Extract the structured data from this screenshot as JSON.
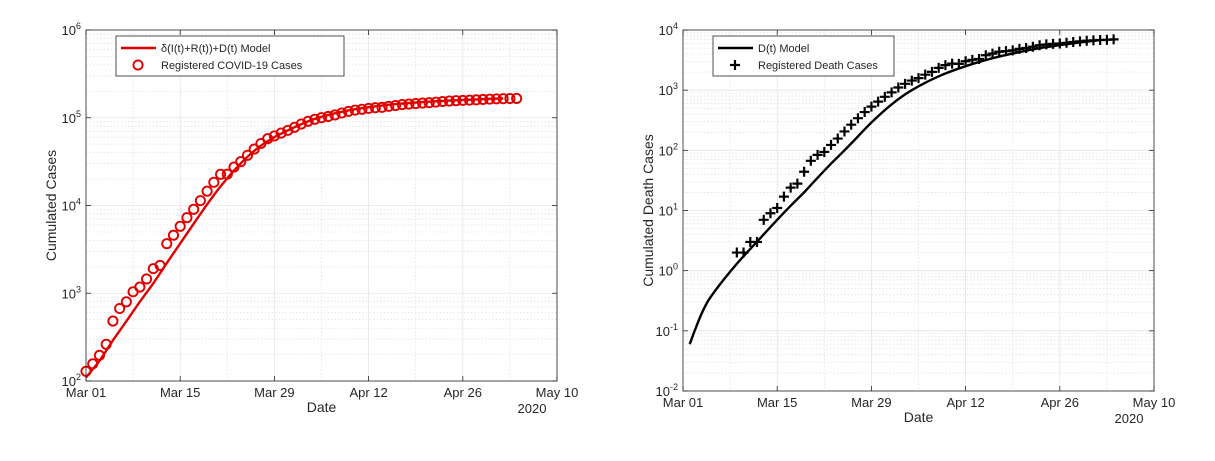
{
  "chart_data": [
    {
      "type": "line",
      "xlabel": "Date",
      "ylabel": "Cumulated Cases",
      "year_label": "2020",
      "x_ticks": [
        "Mar 01",
        "Mar 15",
        "Mar 29",
        "Apr 12",
        "Apr 26",
        "May 10"
      ],
      "xlim": [
        "2020-03-01",
        "2020-05-10"
      ],
      "y_scale": "log",
      "ylim": [
        100,
        1000000
      ],
      "y_ticks": [
        {
          "base": "10",
          "exp": "2"
        },
        {
          "base": "10",
          "exp": "3"
        },
        {
          "base": "10",
          "exp": "4"
        },
        {
          "base": "10",
          "exp": "5"
        },
        {
          "base": "10",
          "exp": "6"
        }
      ],
      "grid": true,
      "legend_position": "top-left",
      "colors": {
        "model": "#e00000",
        "data": "#e00000"
      },
      "series": [
        {
          "name": "δ(I(t)+R(t))+D(t) Model",
          "kind": "line",
          "x": [
            "2020-03-01",
            "2020-03-03",
            "2020-03-05",
            "2020-03-07",
            "2020-03-09",
            "2020-03-11",
            "2020-03-13",
            "2020-03-15",
            "2020-03-17",
            "2020-03-19",
            "2020-03-21",
            "2020-03-23",
            "2020-03-25",
            "2020-03-27",
            "2020-03-29",
            "2020-04-01",
            "2020-04-04",
            "2020-04-08",
            "2020-04-12",
            "2020-04-16",
            "2020-04-20",
            "2020-04-24",
            "2020-04-28",
            "2020-05-02"
          ],
          "y": [
            110,
            170,
            290,
            480,
            800,
            1300,
            2200,
            3700,
            6200,
            10300,
            16500,
            25000,
            36000,
            48000,
            60000,
            78000,
            97000,
            117000,
            132000,
            143000,
            151000,
            157000,
            162000,
            166000
          ]
        },
        {
          "name": "Registered COVID-19 Cases",
          "kind": "marker",
          "marker": "circle",
          "x": [
            "2020-03-01",
            "2020-03-02",
            "2020-03-03",
            "2020-03-04",
            "2020-03-05",
            "2020-03-06",
            "2020-03-07",
            "2020-03-08",
            "2020-03-09",
            "2020-03-10",
            "2020-03-11",
            "2020-03-12",
            "2020-03-13",
            "2020-03-14",
            "2020-03-15",
            "2020-03-16",
            "2020-03-17",
            "2020-03-18",
            "2020-03-19",
            "2020-03-20",
            "2020-03-21",
            "2020-03-22",
            "2020-03-23",
            "2020-03-24",
            "2020-03-25",
            "2020-03-26",
            "2020-03-27",
            "2020-03-28",
            "2020-03-29",
            "2020-03-30",
            "2020-03-31",
            "2020-04-01",
            "2020-04-02",
            "2020-04-03",
            "2020-04-04",
            "2020-04-05",
            "2020-04-06",
            "2020-04-07",
            "2020-04-08",
            "2020-04-09",
            "2020-04-10",
            "2020-04-11",
            "2020-04-12",
            "2020-04-13",
            "2020-04-14",
            "2020-04-15",
            "2020-04-16",
            "2020-04-17",
            "2020-04-18",
            "2020-04-19",
            "2020-04-20",
            "2020-04-21",
            "2020-04-22",
            "2020-04-23",
            "2020-04-24",
            "2020-04-25",
            "2020-04-26",
            "2020-04-27",
            "2020-04-28",
            "2020-04-29",
            "2020-04-30",
            "2020-05-01",
            "2020-05-02",
            "2020-05-03",
            "2020-05-04"
          ],
          "y": [
            129,
            157,
            196,
            262,
            482,
            670,
            799,
            1040,
            1176,
            1457,
            1908,
            2078,
            3675,
            4585,
            5795,
            7272,
            9045,
            11364,
            14550,
            18364,
            22672,
            22780,
            27436,
            31554,
            37323,
            43938,
            50871,
            57695,
            62095,
            66885,
            71808,
            77872,
            84794,
            91159,
            96092,
            100123,
            103374,
            107663,
            113296,
            118181,
            122171,
            124908,
            127854,
            130072,
            131359,
            134753,
            137698,
            141397,
            143342,
            145184,
            147065,
            148291,
            150648,
            153129,
            154999,
            156513,
            157770,
            158758,
            159912,
            161539,
            163009,
            164077,
            164967,
            165664,
            166152
          ]
        }
      ]
    },
    {
      "type": "line",
      "xlabel": "Date",
      "ylabel": "Cumulated Death Cases",
      "year_label": "2020",
      "x_ticks": [
        "Mar 01",
        "Mar 15",
        "Mar 29",
        "Apr 12",
        "Apr 26",
        "May 10"
      ],
      "xlim": [
        "2020-03-01",
        "2020-05-10"
      ],
      "y_scale": "log",
      "ylim": [
        0.01,
        10000
      ],
      "y_ticks": [
        {
          "base": "10",
          "exp": "-2"
        },
        {
          "base": "10",
          "exp": "-1"
        },
        {
          "base": "10",
          "exp": "0"
        },
        {
          "base": "10",
          "exp": "1"
        },
        {
          "base": "10",
          "exp": "2"
        },
        {
          "base": "10",
          "exp": "3"
        },
        {
          "base": "10",
          "exp": "4"
        }
      ],
      "grid": true,
      "legend_position": "top-left",
      "colors": {
        "model": "#000000",
        "data": "#000000"
      },
      "series": [
        {
          "name": "D(t) Model",
          "kind": "line",
          "x": [
            "2020-03-02",
            "2020-03-03",
            "2020-03-04",
            "2020-03-05",
            "2020-03-07",
            "2020-03-09",
            "2020-03-11",
            "2020-03-13",
            "2020-03-15",
            "2020-03-17",
            "2020-03-19",
            "2020-03-21",
            "2020-03-23",
            "2020-03-25",
            "2020-03-27",
            "2020-03-29",
            "2020-04-01",
            "2020-04-04",
            "2020-04-08",
            "2020-04-12",
            "2020-04-16",
            "2020-04-20",
            "2020-04-24",
            "2020-04-28",
            "2020-05-02"
          ],
          "y": [
            0.06,
            0.12,
            0.22,
            0.35,
            0.7,
            1.3,
            2.3,
            4,
            7,
            12,
            20,
            35,
            60,
            100,
            170,
            290,
            580,
            1000,
            1700,
            2500,
            3400,
            4300,
            5200,
            6000,
            6800
          ]
        },
        {
          "name": "Registered Death Cases",
          "kind": "marker",
          "marker": "plus",
          "x": [
            "2020-03-09",
            "2020-03-10",
            "2020-03-11",
            "2020-03-12",
            "2020-03-13",
            "2020-03-14",
            "2020-03-15",
            "2020-03-16",
            "2020-03-17",
            "2020-03-18",
            "2020-03-19",
            "2020-03-20",
            "2020-03-21",
            "2020-03-22",
            "2020-03-23",
            "2020-03-24",
            "2020-03-25",
            "2020-03-26",
            "2020-03-27",
            "2020-03-28",
            "2020-03-29",
            "2020-03-30",
            "2020-03-31",
            "2020-04-01",
            "2020-04-02",
            "2020-04-03",
            "2020-04-04",
            "2020-04-05",
            "2020-04-06",
            "2020-04-07",
            "2020-04-08",
            "2020-04-09",
            "2020-04-10",
            "2020-04-11",
            "2020-04-12",
            "2020-04-13",
            "2020-04-14",
            "2020-04-15",
            "2020-04-16",
            "2020-04-17",
            "2020-04-18",
            "2020-04-19",
            "2020-04-20",
            "2020-04-21",
            "2020-04-22",
            "2020-04-23",
            "2020-04-24",
            "2020-04-25",
            "2020-04-26",
            "2020-04-27",
            "2020-04-28",
            "2020-04-29",
            "2020-04-30",
            "2020-05-01",
            "2020-05-02",
            "2020-05-03",
            "2020-05-04"
          ],
          "y": [
            2,
            2,
            3,
            3,
            7,
            9,
            11,
            17,
            24,
            28,
            44,
            67,
            84,
            94,
            123,
            157,
            206,
            267,
            342,
            433,
            533,
            645,
            775,
            920,
            1107,
            1275,
            1444,
            1584,
            1810,
            2016,
            2349,
            2607,
            2767,
            2736,
            3022,
            3194,
            3294,
            3804,
            4052,
            4352,
            4459,
            4586,
            4862,
            5033,
            5279,
            5575,
            5760,
            5877,
            5976,
            6126,
            6314,
            6467,
            6623,
            6736,
            6812,
            6866,
            6993
          ]
        }
      ]
    }
  ]
}
